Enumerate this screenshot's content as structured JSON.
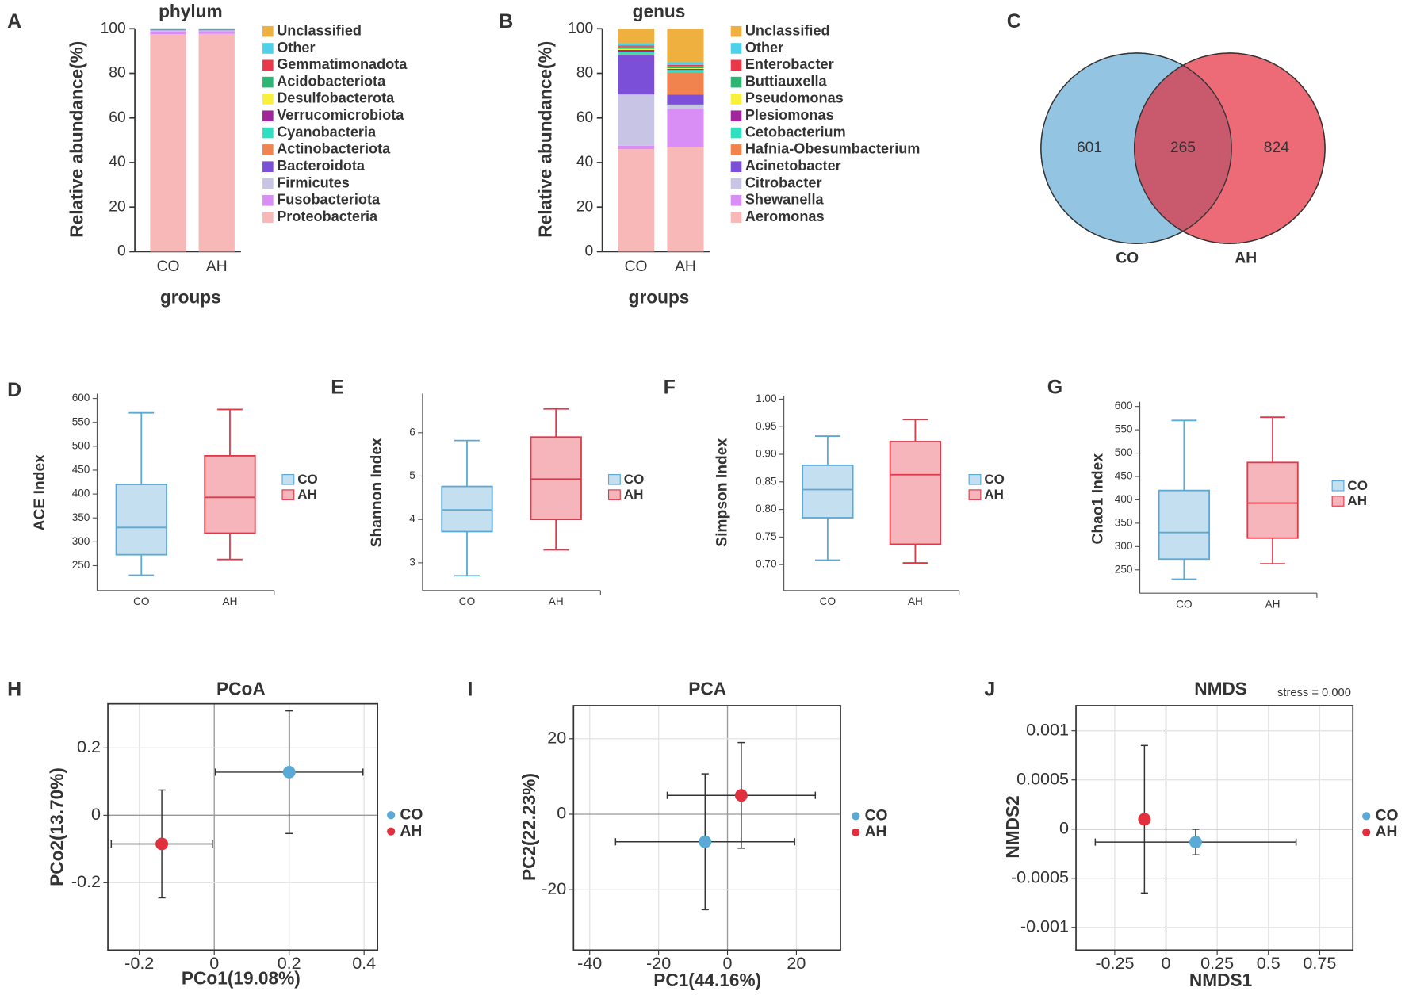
{
  "chart_data": [
    {
      "type": "bar",
      "panel": "A",
      "title": "phylum",
      "xlabel": "groups",
      "ylabel": "Relative abundance(%)",
      "categories": [
        "CO",
        "AH"
      ],
      "ylim": [
        0,
        100
      ],
      "yticks": [
        0,
        20,
        40,
        60,
        80,
        100
      ],
      "series": [
        {
          "name": "Proteobacteria",
          "color": "#f9b8b8",
          "values": [
            97.5,
            97.7
          ]
        },
        {
          "name": "Fusobacteriota",
          "color": "#d98ef5",
          "values": [
            1.3,
            1.2
          ]
        },
        {
          "name": "Firmicutes",
          "color": "#c8c4e6",
          "values": [
            0.5,
            0.4
          ]
        },
        {
          "name": "Bacteroidota",
          "color": "#7b4fd8",
          "values": [
            0.3,
            0.3
          ]
        },
        {
          "name": "Actinobacteriota",
          "color": "#f0834e",
          "values": [
            0.1,
            0.1
          ]
        },
        {
          "name": "Cyanobacteria",
          "color": "#2ee0c0",
          "values": [
            0.05,
            0.05
          ]
        },
        {
          "name": "Verrucomicrobiota",
          "color": "#a0279b",
          "values": [
            0.05,
            0.05
          ]
        },
        {
          "name": "Desulfobacterota",
          "color": "#f8f03a",
          "values": [
            0.05,
            0.05
          ]
        },
        {
          "name": "Acidobacteriota",
          "color": "#2bb673",
          "values": [
            0.05,
            0.05
          ]
        },
        {
          "name": "Gemmatimonadota",
          "color": "#e8394a",
          "values": [
            0.05,
            0.05
          ]
        },
        {
          "name": "Other",
          "color": "#4dd0ea",
          "values": [
            0.2,
            0.2
          ]
        },
        {
          "name": "Unclassified",
          "color": "#f0b040",
          "values": [
            0.1,
            0.05
          ]
        }
      ]
    },
    {
      "type": "bar",
      "panel": "B",
      "title": "genus",
      "xlabel": "groups",
      "ylabel": "Relative abundance(%)",
      "categories": [
        "CO",
        "AH"
      ],
      "ylim": [
        0,
        100
      ],
      "yticks": [
        0,
        20,
        40,
        60,
        80,
        100
      ],
      "series": [
        {
          "name": "Aeromonas",
          "color": "#f9b8b8",
          "values": [
            46,
            47
          ]
        },
        {
          "name": "Shewanella",
          "color": "#d98ef5",
          "values": [
            1.5,
            17
          ]
        },
        {
          "name": "Citrobacter",
          "color": "#c8c4e6",
          "values": [
            23,
            2
          ]
        },
        {
          "name": "Acinetobacter",
          "color": "#7b4fd8",
          "values": [
            17.5,
            4.5
          ]
        },
        {
          "name": "Hafnia-Obesumbacterium",
          "color": "#f0834e",
          "values": [
            0.5,
            10
          ]
        },
        {
          "name": "Cetobacterium",
          "color": "#2ee0c0",
          "values": [
            1,
            1
          ]
        },
        {
          "name": "Plesiomonas",
          "color": "#a0279b",
          "values": [
            1,
            0.5
          ]
        },
        {
          "name": "Pseudomonas",
          "color": "#f8f03a",
          "values": [
            0.5,
            0.3
          ]
        },
        {
          "name": "Buttiauxella",
          "color": "#2bb673",
          "values": [
            1,
            1
          ]
        },
        {
          "name": "Enterobacter",
          "color": "#e8394a",
          "values": [
            0.5,
            0.5
          ]
        },
        {
          "name": "Other",
          "color": "#4dd0ea",
          "values": [
            1,
            1.2
          ]
        },
        {
          "name": "Unclassified",
          "color": "#f0b040",
          "values": [
            6.5,
            15
          ]
        }
      ]
    },
    {
      "type": "venn",
      "panel": "C",
      "sets": [
        {
          "name": "CO",
          "color": "#93c5e3",
          "only": 601
        },
        {
          "name": "AH",
          "color": "#ec6b76",
          "only": 824
        }
      ],
      "overlap": 265,
      "overlap_color": "#c95a6e"
    },
    {
      "type": "box",
      "panel": "D",
      "ylabel": "ACE Index",
      "categories": [
        "CO",
        "AH"
      ],
      "ylim": [
        198,
        610
      ],
      "yticks": [
        250,
        300,
        350,
        400,
        450,
        500,
        550,
        600
      ],
      "boxes": [
        {
          "name": "CO",
          "color": "#5aa9d6",
          "fill": "#c3dff0",
          "min": 230,
          "q1": 273,
          "median": 330,
          "q3": 420,
          "max": 570
        },
        {
          "name": "AH",
          "color": "#e0394a",
          "fill": "#f5b5bb",
          "min": 263,
          "q1": 318,
          "median": 393,
          "q3": 480,
          "max": 577
        }
      ]
    },
    {
      "type": "box",
      "panel": "E",
      "ylabel": "Shannon Index",
      "categories": [
        "CO",
        "AH"
      ],
      "ylim": [
        2.36,
        6.9
      ],
      "yticks": [
        3,
        4,
        5,
        6
      ],
      "boxes": [
        {
          "name": "CO",
          "color": "#5aa9d6",
          "fill": "#c3dff0",
          "min": 2.7,
          "q1": 3.72,
          "median": 4.22,
          "q3": 4.76,
          "max": 5.82
        },
        {
          "name": "AH",
          "color": "#e0394a",
          "fill": "#f5b5bb",
          "min": 3.3,
          "q1": 4.0,
          "median": 4.93,
          "q3": 5.9,
          "max": 6.55
        }
      ]
    },
    {
      "type": "box",
      "panel": "F",
      "ylabel": "Simpson Index",
      "categories": [
        "CO",
        "AH"
      ],
      "ylim": [
        0.653,
        1.005
      ],
      "yticks": [
        {
          "value": 0.7,
          "label": "0.70"
        },
        0.75,
        {
          "value": 0.8,
          "label": "0.80"
        },
        0.85,
        {
          "value": 0.9,
          "label": "0.90"
        },
        0.95,
        {
          "value": 1,
          "label": "1.00"
        }
      ],
      "boxes": [
        {
          "name": "CO",
          "color": "#5aa9d6",
          "fill": "#c3dff0",
          "min": 0.708,
          "q1": 0.785,
          "median": 0.836,
          "q3": 0.88,
          "max": 0.933
        },
        {
          "name": "AH",
          "color": "#e0394a",
          "fill": "#f5b5bb",
          "min": 0.703,
          "q1": 0.737,
          "median": 0.863,
          "q3": 0.923,
          "max": 0.963
        }
      ]
    },
    {
      "type": "box",
      "panel": "G",
      "ylabel": "Chao1 Index",
      "categories": [
        "CO",
        "AH"
      ],
      "ylim": [
        200,
        610
      ],
      "yticks": [
        250,
        300,
        350,
        400,
        450,
        500,
        550,
        600
      ],
      "boxes": [
        {
          "name": "CO",
          "color": "#5aa9d6",
          "fill": "#c3dff0",
          "min": 230,
          "q1": 273,
          "median": 330,
          "q3": 420,
          "max": 570
        },
        {
          "name": "AH",
          "color": "#e0394a",
          "fill": "#f5b5bb",
          "min": 263,
          "q1": 318,
          "median": 393,
          "q3": 480,
          "max": 577
        }
      ]
    },
    {
      "type": "scatter",
      "panel": "H",
      "title": "PCoA",
      "xlabel": "PCo1(19.08%)",
      "ylabel": "PCo2(13.70%)",
      "xlim": [
        -0.284,
        0.436
      ],
      "ylim": [
        -0.4,
        0.331
      ],
      "xticks": [
        -0.2,
        0,
        0.2,
        0.4
      ],
      "yticks": [
        -0.2,
        0,
        0.2
      ],
      "grid": true,
      "series": [
        {
          "name": "CO",
          "color": "#5aa9d6",
          "x": [
            0.2
          ],
          "values": [
            0.128
          ],
          "xerr": [
            0.197
          ],
          "yerr": [
            0.182
          ]
        },
        {
          "name": "AH",
          "color": "#e0303d",
          "x": [
            -0.14
          ],
          "values": [
            -0.085
          ],
          "xerr": [
            0.135
          ],
          "yerr": [
            0.16
          ]
        }
      ]
    },
    {
      "type": "scatter",
      "panel": "I",
      "title": "PCA",
      "xlabel": "PC1(44.16%)",
      "ylabel": "PC2(22.23%)",
      "xlim": [
        -44.7,
        32.8
      ],
      "ylim": [
        -36,
        28.8
      ],
      "xticks": [
        -40,
        -20,
        0,
        20
      ],
      "yticks": [
        -20,
        0,
        20
      ],
      "grid": true,
      "series": [
        {
          "name": "CO",
          "color": "#5aa9d6",
          "x": [
            -6.5
          ],
          "values": [
            -7.3
          ],
          "xerr": [
            26
          ],
          "yerr": [
            18
          ]
        },
        {
          "name": "AH",
          "color": "#e0303d",
          "x": [
            4
          ],
          "values": [
            5
          ],
          "xerr": [
            21.5
          ],
          "yerr": [
            14
          ]
        }
      ]
    },
    {
      "type": "scatter",
      "panel": "J",
      "title": "NMDS",
      "annotation": "stress = 0.000",
      "xlabel": "NMDS1",
      "ylabel": "NMDS2",
      "xlim": [
        -0.439,
        0.912
      ],
      "ylim": [
        -0.00123,
        0.001256
      ],
      "xticks": [
        -0.25,
        0,
        0.25,
        0.5,
        0.75
      ],
      "yticks": [
        -0.001,
        -0.0005,
        0,
        0.0005,
        0.001
      ],
      "grid": true,
      "series": [
        {
          "name": "CO",
          "color": "#5aa9d6",
          "x": [
            0.145
          ],
          "values": [
            -0.000132
          ],
          "xerr": [
            0.49
          ],
          "yerr": [
            0.00013
          ]
        },
        {
          "name": "AH",
          "color": "#e0303d",
          "x": [
            -0.105
          ],
          "values": [
            0.0001
          ],
          "xerr": [
            0
          ],
          "yerr": [
            0.00075
          ]
        }
      ]
    }
  ]
}
